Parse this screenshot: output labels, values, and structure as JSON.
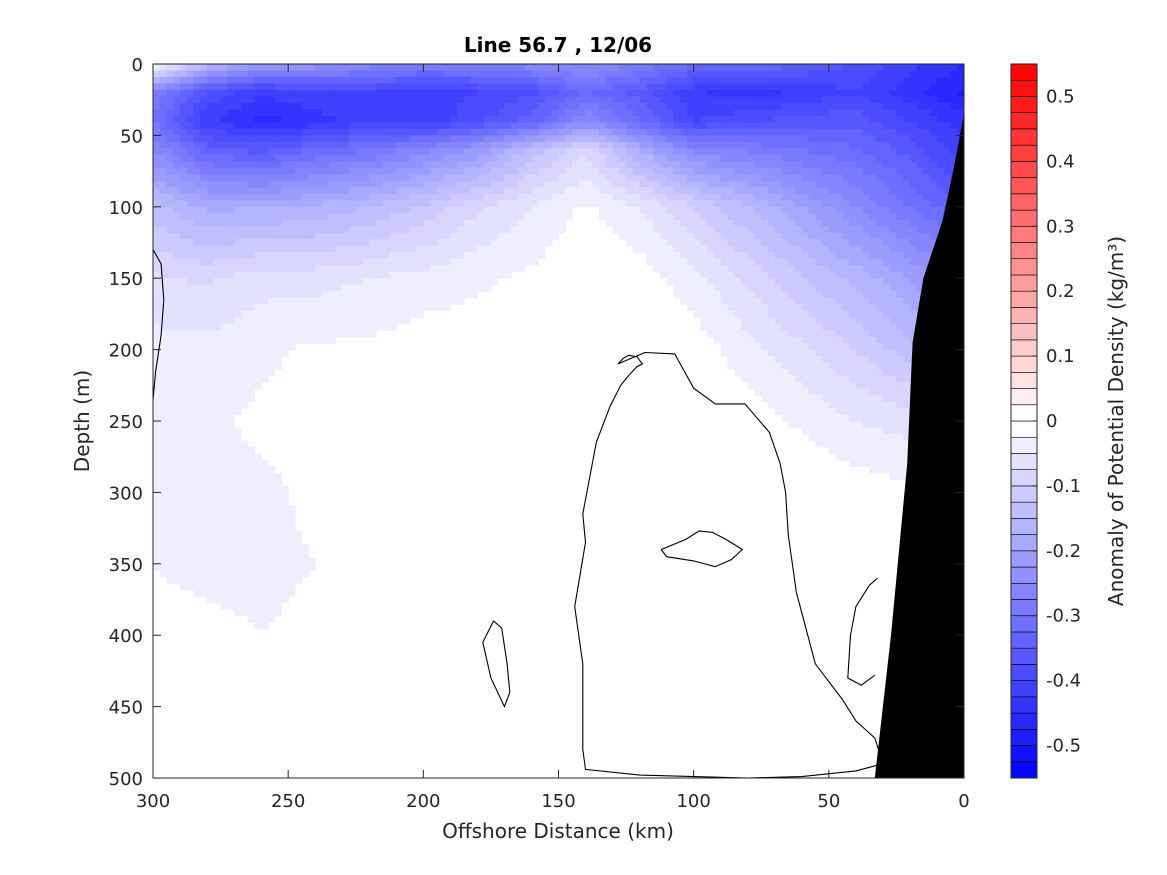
{
  "chart_data": {
    "type": "heatmap",
    "subtype": "filled-contour section",
    "title": "Line 56.7 , 12/06",
    "xlabel": "Offshore Distance (km)",
    "ylabel": "Depth (m)",
    "colorbar_label": "Anomaly of Potential Density (kg/m³)",
    "xlim": [
      300,
      0
    ],
    "ylim": [
      500,
      0
    ],
    "x_reversed": true,
    "y_reversed": true,
    "x_ticks": [
      "300",
      "250",
      "200",
      "150",
      "100",
      "50",
      "0"
    ],
    "y_ticks": [
      "0",
      "50",
      "100",
      "150",
      "200",
      "250",
      "300",
      "350",
      "400",
      "450",
      "500"
    ],
    "colorbar_range": [
      -0.55,
      0.55
    ],
    "colorbar_ticks": [
      "0.5",
      "0.4",
      "0.3",
      "0.2",
      "0.1",
      "0",
      "-0.1",
      "-0.2",
      "-0.3",
      "-0.4",
      "-0.5"
    ],
    "colormap": {
      "low": "#0000ff",
      "mid": "#ffffff",
      "high": "#ff0000"
    },
    "colorbar_levels": 44,
    "distance_km": [
      300,
      280,
      260,
      240,
      220,
      200,
      180,
      160,
      140,
      120,
      100,
      80,
      60,
      40,
      20,
      0
    ],
    "depth_m": [
      0,
      20,
      40,
      60,
      100,
      150,
      200,
      250,
      300,
      350,
      400,
      450,
      500
    ],
    "anomaly": [
      [
        0.0,
        -0.15,
        -0.22,
        -0.23,
        -0.26,
        -0.28,
        -0.28,
        -0.26,
        -0.24,
        -0.28,
        -0.32,
        -0.32,
        -0.35,
        -0.38,
        -0.42,
        -0.45
      ],
      [
        -0.28,
        -0.38,
        -0.42,
        -0.4,
        -0.4,
        -0.42,
        -0.4,
        -0.38,
        -0.32,
        -0.36,
        -0.42,
        -0.44,
        -0.42,
        -0.4,
        -0.44,
        -0.48
      ],
      [
        -0.3,
        -0.42,
        -0.46,
        -0.44,
        -0.4,
        -0.42,
        -0.38,
        -0.34,
        -0.25,
        -0.32,
        -0.4,
        -0.38,
        -0.36,
        -0.36,
        -0.4,
        -0.44
      ],
      [
        -0.25,
        -0.34,
        -0.36,
        -0.32,
        -0.3,
        -0.26,
        -0.22,
        -0.14,
        -0.08,
        -0.18,
        -0.26,
        -0.28,
        -0.3,
        -0.32,
        -0.36,
        -0.42
      ],
      [
        -0.14,
        -0.18,
        -0.18,
        -0.17,
        -0.15,
        -0.12,
        -0.08,
        -0.05,
        -0.02,
        -0.05,
        -0.1,
        -0.15,
        -0.2,
        -0.25,
        -0.3,
        -0.35
      ],
      [
        -0.07,
        -0.08,
        -0.06,
        -0.06,
        -0.05,
        -0.04,
        -0.03,
        -0.02,
        0.0,
        -0.01,
        -0.04,
        -0.08,
        -0.12,
        -0.16,
        -0.2,
        -0.25
      ],
      [
        -0.04,
        -0.04,
        -0.03,
        -0.02,
        -0.02,
        -0.01,
        -0.01,
        0.0,
        0.0,
        0.0,
        -0.01,
        -0.04,
        -0.07,
        -0.1,
        -0.14,
        -0.18
      ],
      [
        -0.03,
        -0.03,
        -0.02,
        -0.02,
        -0.01,
        0.0,
        0.0,
        0.0,
        0.0,
        0.0,
        0.0,
        -0.01,
        -0.03,
        -0.05,
        -0.06,
        -0.07
      ],
      [
        -0.03,
        -0.03,
        -0.03,
        -0.02,
        -0.01,
        0.0,
        0.0,
        0.0,
        0.0,
        0.0,
        0.0,
        0.0,
        0.0,
        -0.01,
        -0.02,
        -0.02
      ],
      [
        -0.025,
        -0.03,
        -0.03,
        -0.025,
        -0.015,
        -0.005,
        0.0,
        0.0,
        0.0,
        0.0,
        0.0,
        0.0,
        0.0,
        0.0,
        0.0,
        0.0
      ],
      [
        -0.02,
        -0.02,
        -0.025,
        -0.02,
        -0.01,
        0.0,
        0.0,
        0.0,
        0.0,
        0.0,
        0.0,
        0.0,
        0.0,
        0.0,
        0.0,
        0.0
      ],
      [
        -0.015,
        -0.015,
        -0.02,
        -0.01,
        -0.005,
        0.0,
        0.0,
        0.0,
        0.0,
        0.0,
        0.0,
        0.0,
        0.0,
        0.0,
        0.0,
        0.0
      ],
      [
        -0.01,
        -0.01,
        -0.005,
        0.0,
        0.0,
        0.0,
        0.0,
        0.0,
        0.0,
        0.0,
        0.0,
        0.0,
        0.0,
        0.0,
        0.0,
        0.0
      ]
    ],
    "bathymetry": {
      "fill_color": "#000000",
      "distance_km": [
        33,
        30,
        27,
        24,
        21,
        19,
        15,
        8,
        4,
        0
      ],
      "depth_m": [
        500,
        450,
        400,
        340,
        280,
        195,
        150,
        110,
        75,
        35
      ]
    },
    "zero_contours": [
      {
        "distance_km": [
          300,
          297,
          296,
          297,
          299,
          300
        ],
        "depth_m": [
          130,
          140,
          165,
          190,
          215,
          235
        ]
      },
      {
        "distance_km": [
          174,
          178,
          175,
          170,
          168,
          169,
          171,
          174
        ],
        "depth_m": [
          390,
          405,
          430,
          450,
          440,
          420,
          395,
          390
        ]
      },
      {
        "distance_km": [
          128,
          118,
          107,
          100,
          92,
          81,
          72,
          68,
          66,
          65,
          62,
          55,
          45,
          40,
          33,
          30,
          40,
          60,
          80,
          100,
          120,
          140,
          141,
          141,
          144,
          140,
          141,
          139,
          136,
          131,
          127,
          124,
          121,
          119,
          121,
          124,
          126,
          128
        ],
        "depth_m": [
          210,
          202,
          203,
          227,
          238,
          238,
          258,
          280,
          300,
          330,
          370,
          420,
          445,
          460,
          472,
          490,
          495,
          499,
          500,
          499,
          498,
          494,
          480,
          420,
          380,
          335,
          315,
          295,
          265,
          240,
          225,
          218,
          212,
          210,
          205,
          204,
          206,
          210
        ]
      },
      {
        "distance_km": [
          112,
          103,
          98,
          93,
          88,
          82,
          86,
          92,
          100,
          110,
          112
        ],
        "depth_m": [
          340,
          333,
          327,
          328,
          333,
          340,
          347,
          352,
          348,
          345,
          340
        ]
      },
      {
        "distance_km": [
          32,
          35,
          40,
          42,
          43,
          38,
          33
        ],
        "depth_m": [
          360,
          365,
          380,
          400,
          430,
          435,
          428
        ]
      }
    ]
  }
}
